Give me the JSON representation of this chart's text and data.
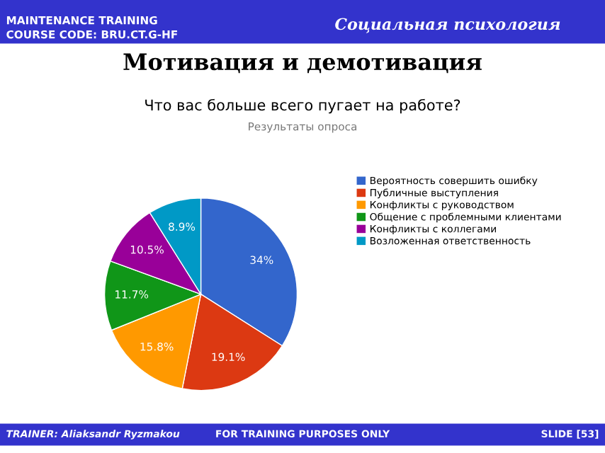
{
  "chart_data": {
    "type": "pie",
    "title": "Что вас больше всего пугает на работе?",
    "subtitle": "Результаты опроса",
    "categories": [
      "Вероятность совершить ошибку",
      "Публичные выступления",
      "Конфликты с руководством",
      "Общение с проблемными клиентами",
      "Конфликты с коллегами",
      "Возложенная ответственность"
    ],
    "values": [
      34,
      19.1,
      15.8,
      11.7,
      10.5,
      8.9
    ],
    "value_labels": [
      "34%",
      "19.1%",
      "15.8%",
      "11.7%",
      "10.5%",
      "8.9%"
    ],
    "colors": [
      "#3366cc",
      "#dc3912",
      "#ff9900",
      "#109618",
      "#990099",
      "#0099c6"
    ],
    "legend": "right",
    "annotations": [
      "MAINTENANCE TRAINING",
      "COURSE CODE: BRU.CT.G-HF",
      "Социальная психология",
      "Мотивация и демотивация",
      "TRAINER: Aliaksandr Ryzmakou",
      "FOR TRAINING PURPOSES ONLY",
      "SLIDE [53]"
    ]
  }
}
